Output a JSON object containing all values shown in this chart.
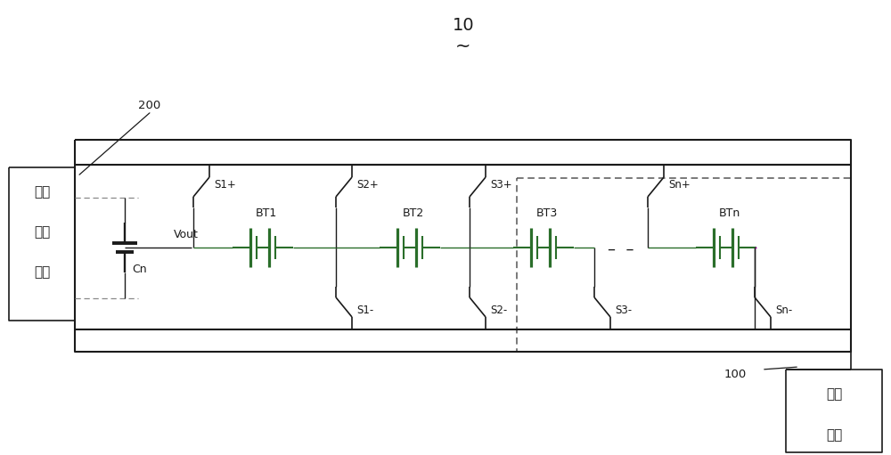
{
  "title": "10",
  "label_200": "200",
  "label_100": "100",
  "box_left_text": [
    "电压",
    "检测",
    "单元"
  ],
  "box_right_text": [
    "控制",
    "中心"
  ],
  "cn_label": "Cn",
  "vout_label": "Vout",
  "bt_labels": [
    "BT1",
    "BT2",
    "BT3",
    "BTn"
  ],
  "s_plus_labels": [
    "S1+",
    "S2+",
    "S3+",
    "Sn+"
  ],
  "s_minus_labels": [
    "S1-",
    "S2-",
    "S3-",
    "Sn-"
  ],
  "bg_color": "#ffffff",
  "line_color": "#1a1a1a",
  "green_color": "#2a6e2a",
  "magenta_color": "#bb00bb",
  "dash_color": "#555555",
  "gray_color": "#888888"
}
